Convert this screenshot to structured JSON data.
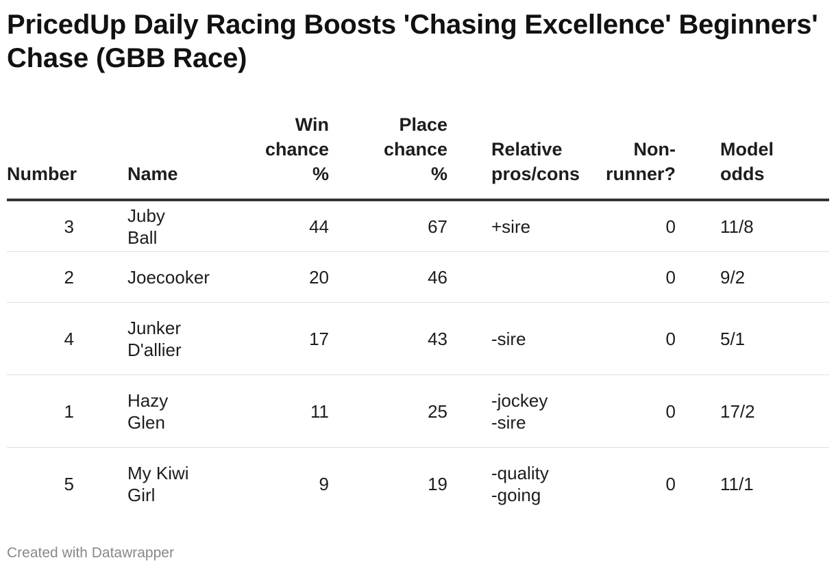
{
  "title": "PricedUp Daily Racing Boosts 'Chasing Excellence' Beginners' Chase (GBB Race)",
  "footer": "Created with Datawrapper",
  "chart_data": {
    "type": "table",
    "columns": [
      {
        "key": "number",
        "label": "Number",
        "align": "right"
      },
      {
        "key": "name",
        "label": "Name",
        "align": "left"
      },
      {
        "key": "win",
        "label": "Win\nchance\n%",
        "align": "right"
      },
      {
        "key": "place",
        "label": "Place\nchance\n%",
        "align": "right"
      },
      {
        "key": "pros",
        "label": "Relative\npros/cons",
        "align": "left"
      },
      {
        "key": "nonrunner",
        "label": "Non-\nrunner?",
        "align": "right"
      },
      {
        "key": "odds",
        "label": "Model\nodds",
        "align": "left"
      }
    ],
    "rows": [
      {
        "number": "3",
        "name": "Juby Ball",
        "win": "44",
        "place": "67",
        "pros": "+sire",
        "nonrunner": "0",
        "odds": "11/8"
      },
      {
        "number": "2",
        "name": "Joecooker",
        "win": "20",
        "place": "46",
        "pros": "",
        "nonrunner": "0",
        "odds": "9/2"
      },
      {
        "number": "4",
        "name": "Junker\nD'allier",
        "win": "17",
        "place": "43",
        "pros": "-sire",
        "nonrunner": "0",
        "odds": "5/1"
      },
      {
        "number": "1",
        "name": "Hazy Glen",
        "win": "11",
        "place": "25",
        "pros": "-jockey\n-sire",
        "nonrunner": "0",
        "odds": "17/2"
      },
      {
        "number": "5",
        "name": "My Kiwi\nGirl",
        "win": "9",
        "place": "19",
        "pros": "-quality\n-going",
        "nonrunner": "0",
        "odds": "11/1"
      }
    ]
  }
}
